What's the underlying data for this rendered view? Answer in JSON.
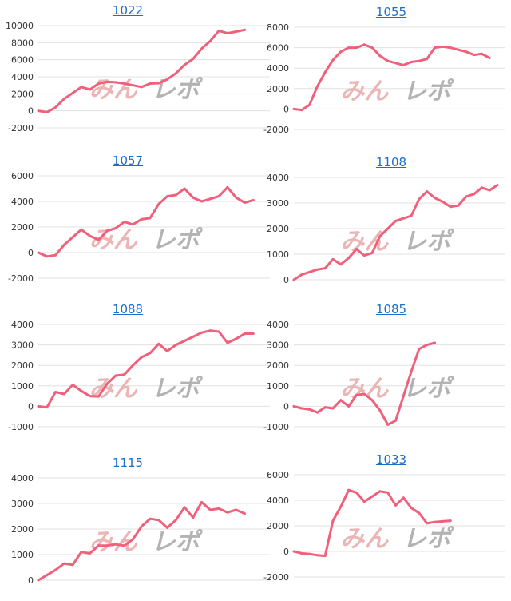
{
  "line_color": "#f0607a",
  "title_color": "#1a6fc9",
  "watermark": {
    "part1": "みん",
    "part2": "レポ"
  },
  "chart_data": [
    {
      "type": "line",
      "title": "1022",
      "ylim": [
        -2000,
        10000
      ],
      "yticks": [
        -2000,
        0,
        2000,
        4000,
        6000,
        8000,
        10000
      ],
      "values": [
        0,
        -150,
        400,
        1400,
        2100,
        2800,
        2500,
        3200,
        3400,
        3350,
        3200,
        3000,
        2800,
        3200,
        3250,
        3700,
        4400,
        5400,
        6100,
        7300,
        8200,
        9400,
        9100,
        9300,
        9500
      ]
    },
    {
      "type": "line",
      "title": "1055",
      "ylim": [
        -2000,
        8000
      ],
      "yticks": [
        -2000,
        0,
        2000,
        4000,
        6000,
        8000
      ],
      "values": [
        0,
        -100,
        400,
        2200,
        3600,
        4800,
        5600,
        6000,
        6000,
        6300,
        6000,
        5200,
        4700,
        4500,
        4300,
        4600,
        4700,
        4900,
        6000,
        6100,
        6000,
        5800,
        5600,
        5300,
        5400,
        5000
      ]
    },
    {
      "type": "line",
      "title": "1057",
      "ylim": [
        -2000,
        6000
      ],
      "yticks": [
        -2000,
        0,
        2000,
        4000,
        6000
      ],
      "values": [
        0,
        -300,
        -200,
        600,
        1200,
        1800,
        1300,
        1000,
        1700,
        1900,
        2400,
        2200,
        2600,
        2700,
        3800,
        4400,
        4500,
        5000,
        4300,
        4000,
        4200,
        4400,
        5100,
        4300,
        3900,
        4100
      ]
    },
    {
      "type": "line",
      "title": "1108",
      "ylim": [
        0,
        4000
      ],
      "yticks": [
        0,
        1000,
        2000,
        3000,
        4000
      ],
      "values": [
        0,
        200,
        300,
        400,
        450,
        800,
        600,
        850,
        1200,
        950,
        1050,
        1700,
        2000,
        2300,
        2400,
        2500,
        3150,
        3450,
        3200,
        3050,
        2850,
        2900,
        3250,
        3350,
        3600,
        3500,
        3700
      ]
    },
    {
      "type": "line",
      "title": "1088",
      "ylim": [
        -1000,
        4000
      ],
      "yticks": [
        -1000,
        0,
        1000,
        2000,
        3000,
        4000
      ],
      "values": [
        0,
        -50,
        700,
        600,
        1050,
        750,
        500,
        480,
        1100,
        1500,
        1550,
        2000,
        2400,
        2600,
        3050,
        2700,
        3000,
        3200,
        3400,
        3600,
        3700,
        3650,
        3100,
        3300,
        3550,
        3550
      ]
    },
    {
      "type": "line",
      "title": "1085",
      "ylim": [
        -1000,
        4000
      ],
      "yticks": [
        -1000,
        0,
        1000,
        2000,
        3000,
        4000
      ],
      "values": [
        0,
        -100,
        -150,
        -300,
        -50,
        -100,
        300,
        0,
        550,
        600,
        300,
        -200,
        -900,
        -700,
        500,
        1700,
        2800,
        3000,
        3100
      ]
    },
    {
      "type": "line",
      "title": "1115",
      "ylim": [
        0,
        4000
      ],
      "yticks": [
        0,
        1000,
        2000,
        3000,
        4000
      ],
      "values": [
        0,
        200,
        400,
        650,
        600,
        1100,
        1050,
        1350,
        1350,
        1400,
        1350,
        1600,
        2100,
        2400,
        2350,
        2050,
        2350,
        2850,
        2450,
        3050,
        2750,
        2800,
        2650,
        2750,
        2600
      ]
    },
    {
      "type": "line",
      "title": "1033",
      "ylim": [
        -2000,
        6000
      ],
      "yticks": [
        -2000,
        0,
        2000,
        4000,
        6000
      ],
      "values": [
        0,
        -150,
        -200,
        -300,
        -350,
        2400,
        3500,
        4800,
        4600,
        3900,
        4300,
        4700,
        4600,
        3600,
        4200,
        3400,
        3000,
        2200,
        2300,
        2350,
        2400
      ]
    }
  ]
}
